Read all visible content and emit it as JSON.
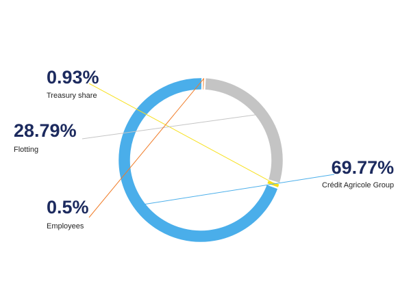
{
  "chart_data": {
    "type": "pie",
    "style": "donut",
    "categories": [
      "Crédit Agricole Group",
      "Employees",
      "Flotting",
      "Treasury share"
    ],
    "values": [
      69.77,
      0.5,
      28.79,
      0.93
    ],
    "value_labels": [
      "69.77%",
      "0.5%",
      "28.79%",
      "0.93%"
    ],
    "colors": [
      "#4aaeea",
      "#f07c28",
      "#c4c4c4",
      "#f7e01b"
    ],
    "legend": "none",
    "grid": false
  }
}
